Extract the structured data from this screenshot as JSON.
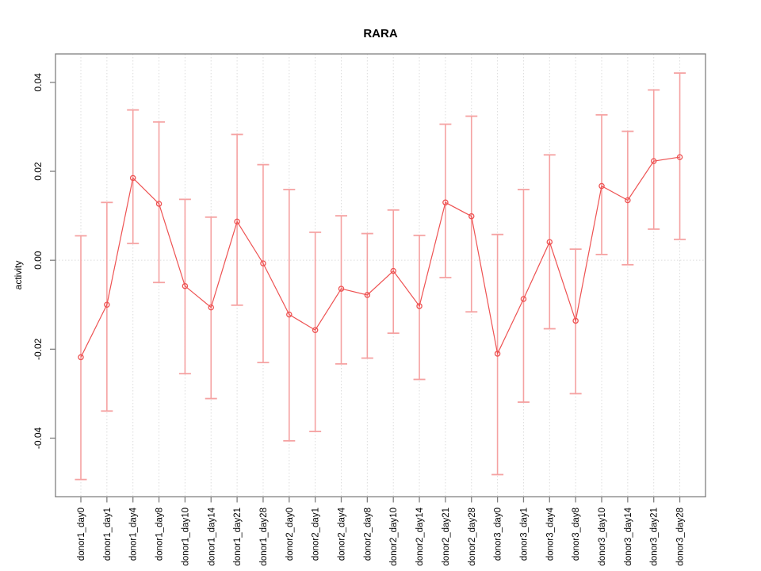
{
  "window": {
    "background": "#ffffff"
  },
  "chart_data": {
    "type": "line",
    "title": "RARA",
    "xlabel": "",
    "ylabel": "activity",
    "legend": "none",
    "categories": [
      "donor1_day0",
      "donor1_day1",
      "donor1_day4",
      "donor1_day8",
      "donor1_day10",
      "donor1_day14",
      "donor1_day21",
      "donor1_day28",
      "donor2_day0",
      "donor2_day1",
      "donor2_day4",
      "donor2_day8",
      "donor2_day10",
      "donor2_day14",
      "donor2_day21",
      "donor2_day28",
      "donor3_day0",
      "donor3_day1",
      "donor3_day4",
      "donor3_day8",
      "donor3_day10",
      "donor3_day14",
      "donor3_day21",
      "donor3_day28"
    ],
    "series": [
      {
        "name": "activity",
        "marker": "open-circle",
        "values": [
          -0.0218,
          -0.01,
          0.0185,
          0.0127,
          -0.0058,
          -0.0106,
          0.0087,
          -0.0007,
          -0.0122,
          -0.0157,
          -0.0064,
          -0.0078,
          -0.0024,
          -0.0103,
          0.013,
          0.0099,
          -0.021,
          -0.0087,
          0.0041,
          -0.0136,
          0.0167,
          0.0135,
          0.0223,
          0.0232
        ],
        "error_upper": [
          0.0055,
          0.013,
          0.0338,
          0.0311,
          0.0137,
          0.0097,
          0.0283,
          0.0215,
          0.0159,
          0.0063,
          0.01,
          0.006,
          0.0113,
          0.0056,
          0.0306,
          0.0324,
          0.0058,
          0.0159,
          0.0237,
          0.0025,
          0.0327,
          0.029,
          0.0383,
          0.0421
        ],
        "error_lower": [
          -0.0493,
          -0.0339,
          0.0038,
          -0.005,
          -0.0255,
          -0.0311,
          -0.0101,
          -0.023,
          -0.0406,
          -0.0385,
          -0.0233,
          -0.022,
          -0.0164,
          -0.0268,
          -0.0039,
          -0.0116,
          -0.0482,
          -0.0319,
          -0.0154,
          -0.03,
          0.0013,
          -0.001,
          0.007,
          0.0047
        ]
      }
    ],
    "ylim": [
      -0.0532,
      0.0464
    ],
    "yticks": [
      0.04,
      0.02,
      0.0,
      -0.02,
      -0.04
    ],
    "ytick_labels": [
      "0.04",
      "0.02",
      "0.00",
      "-0.02",
      "-0.04"
    ],
    "grid": {
      "vertical_dotted": true,
      "horizontal_zero_dotted": true
    },
    "colors": {
      "error_bar": "#f5a2a2",
      "line": "#ee5252",
      "marker": "#ee5252",
      "axis": "#808080",
      "grid": "#dcdcdc",
      "text": "#000000"
    }
  }
}
